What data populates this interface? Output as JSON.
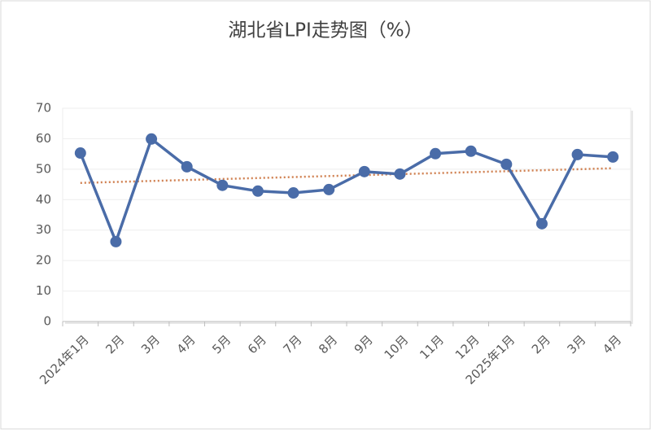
{
  "chart_data": {
    "type": "line",
    "title": "湖北省LPI走势图（%）",
    "categories": [
      "2024年1月",
      "2月",
      "3月",
      "4月",
      "5月",
      "6月",
      "7月",
      "8月",
      "9月",
      "10月",
      "11月",
      "12月",
      "2025年1月",
      "2月",
      "3月",
      "4月"
    ],
    "values": [
      55.3,
      26.2,
      59.9,
      50.8,
      44.7,
      42.8,
      42.2,
      43.3,
      49.2,
      48.4,
      55.1,
      55.9,
      51.6,
      32.1,
      54.8,
      54.0
    ],
    "color": "#4a6ca8",
    "trendline": true,
    "trendline_color": "#d08050",
    "ylim": [
      0,
      70
    ],
    "yticks": [
      0,
      10,
      20,
      30,
      40,
      50,
      60,
      70
    ],
    "grid": true
  }
}
